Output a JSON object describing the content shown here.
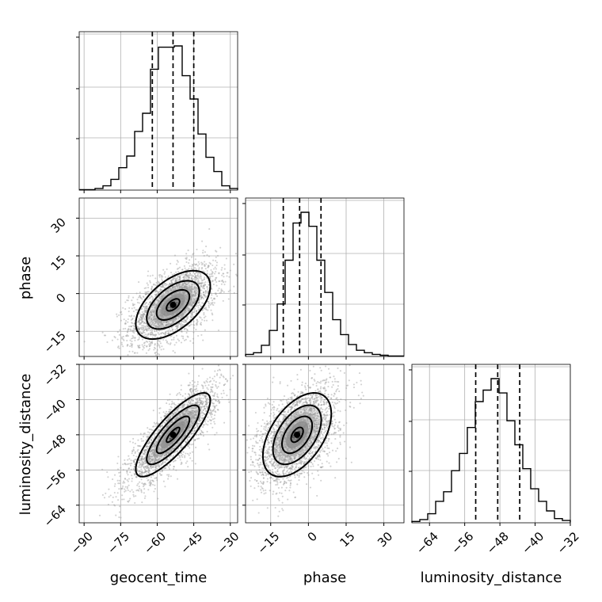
{
  "chart_data": {
    "type": "corner",
    "parameters": [
      "geocent_time",
      "phase",
      "luminosity_distance"
    ],
    "axis_labels": {
      "x": [
        "geocent_time",
        "phase",
        "luminosity_distance"
      ],
      "y": [
        "phase",
        "luminosity_distance"
      ]
    },
    "ranges": {
      "geocent_time": [
        -92,
        -27
      ],
      "phase": [
        -25,
        38
      ],
      "luminosity_distance": [
        -68,
        -32
      ]
    },
    "ticks": {
      "geocent_time": [
        "-90",
        "-75",
        "-60",
        "-45",
        "-30"
      ],
      "phase": [
        "-15",
        "0",
        "15",
        "30"
      ],
      "luminosity_distance": [
        "-64",
        "-56",
        "-48",
        "-40",
        "-32"
      ]
    },
    "grid": true,
    "quantiles": {
      "geocent_time": [
        -62,
        -53.5,
        -45
      ],
      "phase": [
        -10,
        -3.5,
        5
      ],
      "luminosity_distance": [
        -53.5,
        -48.5,
        -43.5
      ]
    },
    "histograms": {
      "geocent_time": {
        "bin_edges": [
          -92,
          -88.75,
          -85.5,
          -82.25,
          -79,
          -75.75,
          -72.5,
          -69.25,
          -66,
          -62.75,
          -59.5,
          -56.25,
          -53,
          -49.75,
          -46.5,
          -43.25,
          -40,
          -36.75,
          -33.5,
          -30.25,
          -27
        ],
        "counts": [
          0.0,
          0.0,
          1.0,
          3.0,
          8.0,
          17.0,
          26.0,
          45.0,
          59.0,
          93.0,
          110.0,
          110.0,
          111.0,
          88.0,
          70.0,
          43.0,
          25.0,
          14.0,
          3.0,
          1.0
        ]
      },
      "phase": {
        "bin_edges": [
          -25,
          -21.85,
          -18.7,
          -15.55,
          -12.4,
          -9.25,
          -6.1,
          -2.95,
          0.2,
          3.35,
          6.5,
          9.65,
          12.8,
          15.95,
          19.1,
          22.25,
          25.4,
          28.55,
          31.7,
          34.85,
          38
        ],
        "counts": [
          2,
          4,
          13,
          31,
          63,
          116,
          161,
          174,
          157,
          116,
          77,
          44,
          26,
          14,
          7,
          4,
          2,
          1,
          0,
          0
        ]
      },
      "luminosity_distance": {
        "bin_edges": [
          -68,
          -66.2,
          -64.4,
          -62.6,
          -60.8,
          -59,
          -57.2,
          -55.4,
          -53.6,
          -51.8,
          -50,
          -48.2,
          -46.4,
          -44.6,
          -42.8,
          -41,
          -39.2,
          -37.4,
          -35.6,
          -33.8,
          -32
        ],
        "counts": [
          1,
          3,
          9,
          22,
          32,
          54,
          72,
          99,
          126,
          138,
          150,
          135,
          106,
          81,
          56,
          35,
          22,
          12,
          4,
          2
        ]
      }
    },
    "pair_plots": [
      {
        "x": "geocent_time",
        "y": "phase",
        "mean": [
          -53.5,
          -4.5
        ],
        "std": [
          9,
          8
        ],
        "rho": 0.55,
        "n_points": 2600,
        "contour_levels": 4
      },
      {
        "x": "geocent_time",
        "y": "luminosity_distance",
        "mean": [
          -53.5,
          -48
        ],
        "std": [
          9,
          5.6
        ],
        "rho": 0.82,
        "n_points": 2600,
        "contour_levels": 4
      },
      {
        "x": "phase",
        "y": "luminosity_distance",
        "mean": [
          -4.5,
          -48
        ],
        "std": [
          8,
          5.6
        ],
        "rho": 0.5,
        "n_points": 2600,
        "contour_levels": 4
      }
    ]
  }
}
